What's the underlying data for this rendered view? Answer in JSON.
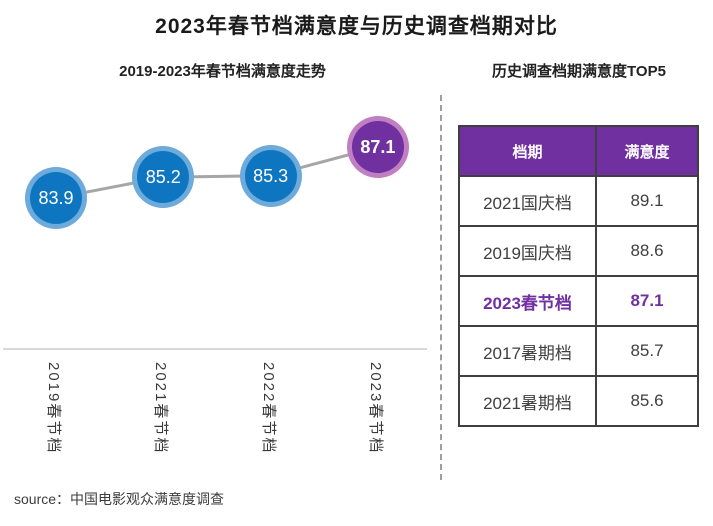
{
  "page": {
    "title": "2023年春节档满意度与历史调查档期对比",
    "source": "source：中国电影观众满意度调查"
  },
  "colors": {
    "point_blue": "#0e76c1",
    "point_blue_halo": "#7fb4de",
    "accent_purple": "#7030a0",
    "purple_halo": "#c987c6",
    "trend_line": "#a6a6a6",
    "axis_line": "#d9d9d9",
    "table_border": "#3f3f3f",
    "header_text": "#ffffff"
  },
  "chart_data": [
    {
      "type": "line",
      "title": "2019-2023年春节档满意度走势",
      "categories": [
        "2019春节档",
        "2021春节档",
        "2022春节档",
        "2023春节档"
      ],
      "values": [
        83.9,
        85.2,
        85.3,
        87.1
      ],
      "highlight_index": 3,
      "xlabel": "",
      "ylabel": "",
      "ylim": [
        83,
        88
      ],
      "grid": false,
      "legend": "none",
      "data_labels": "inside-markers"
    },
    {
      "type": "table",
      "title": "历史调查档期满意度TOP5",
      "headers": [
        "档期",
        "满意度"
      ],
      "rows": [
        [
          "2021国庆档",
          89.1
        ],
        [
          "2019国庆档",
          88.6
        ],
        [
          "2023春节档",
          87.1
        ],
        [
          "2017暑期档",
          85.7
        ],
        [
          "2021暑期档",
          85.6
        ]
      ],
      "highlight_row": 2
    }
  ]
}
